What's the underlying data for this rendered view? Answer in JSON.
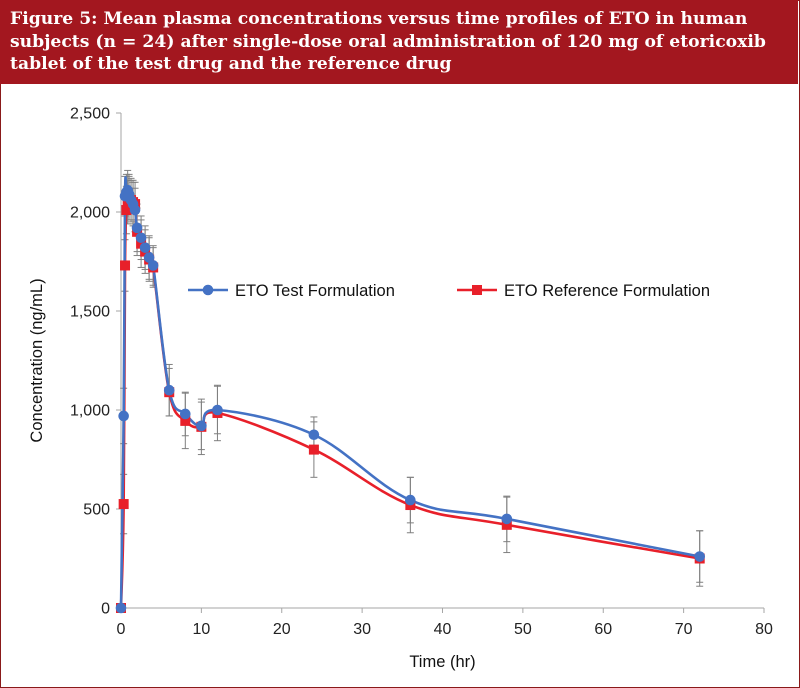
{
  "header": {
    "figure_label": "Figure 5:",
    "caption": "Mean plasma concentrations versus time profiles of ETO in human subjects (n = 24) after single-dose oral administration of 120 mg of etoricoxib tablet of the test drug and the reference drug"
  },
  "colors": {
    "header_bg": "#a3171f",
    "test": "#4472c4",
    "reference": "#e8202a",
    "error_bar": "#7f7f7f"
  },
  "chart_data": {
    "type": "line",
    "xlabel": "Time (hr)",
    "ylabel": "Concentration (ng/mL)",
    "xlim": [
      0,
      80
    ],
    "ylim": [
      0,
      2500
    ],
    "x_ticks": [
      0,
      10,
      20,
      30,
      40,
      50,
      60,
      70,
      80
    ],
    "y_ticks": [
      0,
      500,
      1000,
      1500,
      2000,
      2500
    ],
    "x_tick_labels": [
      "0",
      "10",
      "20",
      "30",
      "40",
      "50",
      "60",
      "70",
      "80"
    ],
    "y_tick_labels": [
      "0",
      "500",
      "1,000",
      "1,500",
      "2,000",
      "2,500"
    ],
    "grid": false,
    "legend_position": "right-middle",
    "series": [
      {
        "name": "ETO Test Formulation",
        "marker": "circle",
        "x": [
          0,
          0.33,
          0.5,
          0.67,
          0.83,
          1,
          1.25,
          1.5,
          1.75,
          2,
          2.5,
          3,
          3.5,
          4,
          6,
          8,
          10,
          12,
          24,
          36,
          48,
          72
        ],
        "y": [
          0,
          970,
          2080,
          2100,
          2110,
          2090,
          2060,
          2040,
          2010,
          1920,
          1870,
          1820,
          1770,
          1730,
          1100,
          980,
          920,
          1000,
          875,
          545,
          450,
          260
        ],
        "err": [
          0,
          140,
          100,
          90,
          100,
          100,
          100,
          110,
          110,
          120,
          110,
          110,
          110,
          100,
          130,
          110,
          120,
          120,
          90,
          115,
          115,
          130
        ]
      },
      {
        "name": "ETO Reference Formulation",
        "marker": "square",
        "x": [
          0,
          0.33,
          0.5,
          0.67,
          0.83,
          1,
          1.25,
          1.5,
          1.75,
          2,
          2.5,
          3,
          3.5,
          4,
          6,
          8,
          10,
          12,
          24,
          36,
          48,
          72
        ],
        "y": [
          0,
          525,
          1730,
          2010,
          2050,
          2070,
          2060,
          2050,
          2040,
          1900,
          1840,
          1800,
          1760,
          1720,
          1090,
          945,
          915,
          985,
          800,
          520,
          420,
          250
        ],
        "err": [
          0,
          150,
          130,
          120,
          110,
          110,
          110,
          110,
          110,
          120,
          120,
          110,
          110,
          100,
          120,
          140,
          140,
          140,
          140,
          140,
          140,
          140
        ]
      }
    ]
  }
}
